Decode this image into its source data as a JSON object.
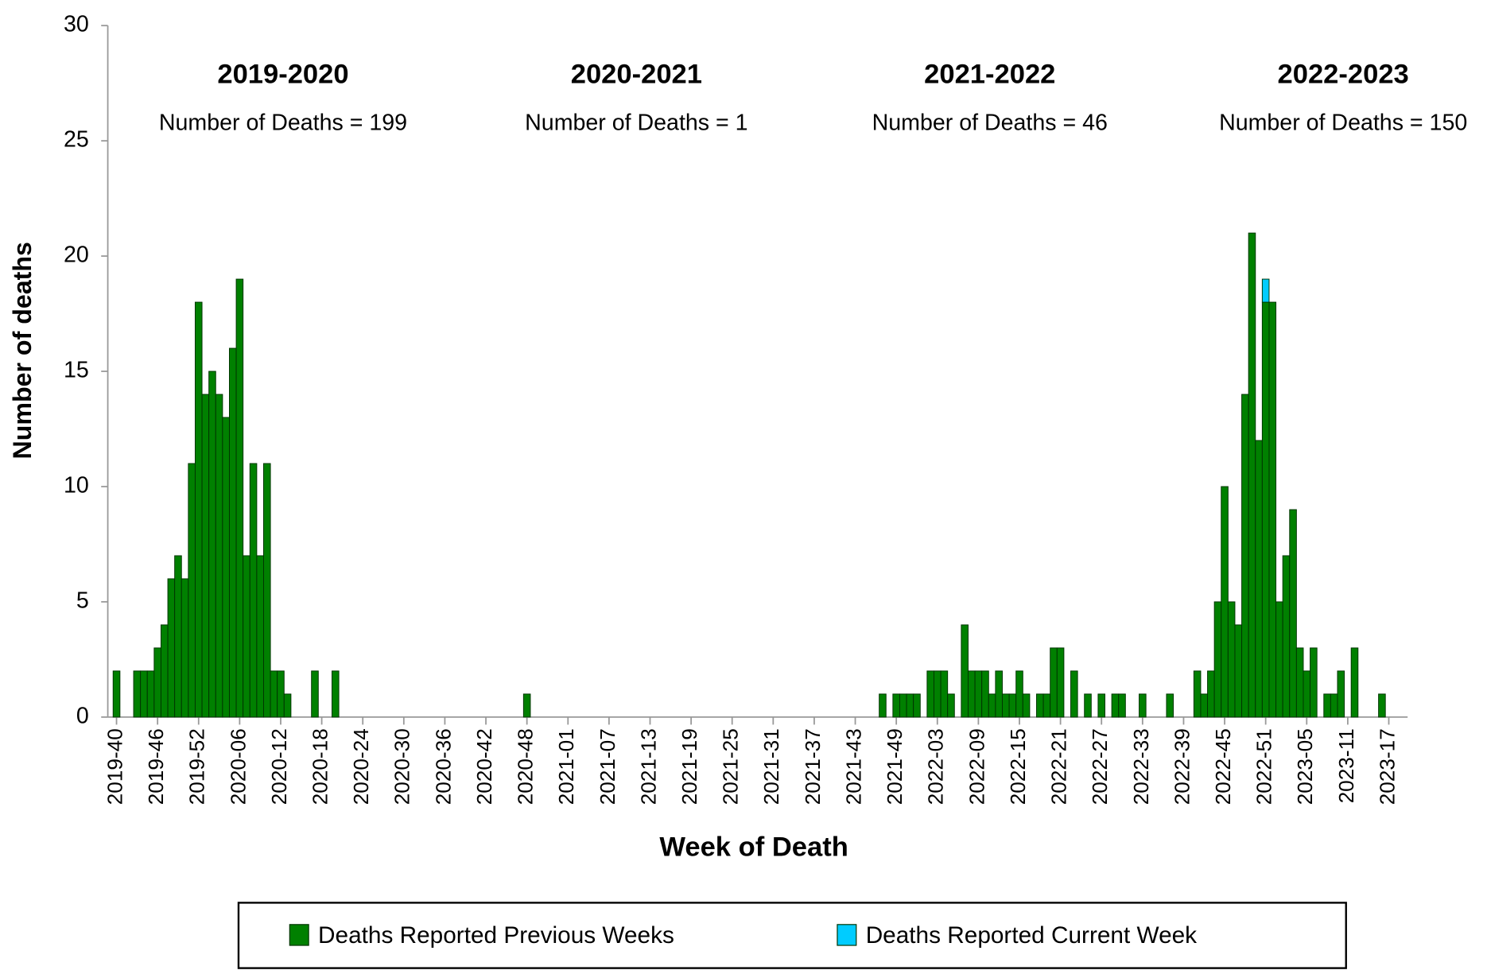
{
  "chart_data": {
    "type": "bar",
    "stacked": true,
    "y_label": "Number of deaths",
    "x_label": "Week of Death",
    "categories": [
      "2019-40",
      null,
      null,
      null,
      null,
      null,
      "2019-46",
      null,
      null,
      null,
      null,
      null,
      "2019-52",
      null,
      null,
      null,
      null,
      null,
      "2020-06",
      null,
      null,
      null,
      null,
      null,
      "2020-12",
      null,
      null,
      null,
      null,
      null,
      "2020-18",
      null,
      null,
      null,
      null,
      null,
      "2020-24",
      null,
      null,
      null,
      null,
      null,
      "2020-30",
      null,
      null,
      null,
      null,
      null,
      "2020-36",
      null,
      null,
      null,
      null,
      null,
      "2020-42",
      null,
      null,
      null,
      null,
      null,
      "2020-48",
      null,
      null,
      null,
      null,
      null,
      "2021-01",
      null,
      null,
      null,
      null,
      null,
      "2021-07",
      null,
      null,
      null,
      null,
      null,
      "2021-13",
      null,
      null,
      null,
      null,
      null,
      "2021-19",
      null,
      null,
      null,
      null,
      null,
      "2021-25",
      null,
      null,
      null,
      null,
      null,
      "2021-31",
      null,
      null,
      null,
      null,
      null,
      "2021-37",
      null,
      null,
      null,
      null,
      null,
      "2021-43",
      null,
      null,
      null,
      null,
      null,
      "2021-49",
      null,
      null,
      null,
      null,
      null,
      "2022-03",
      null,
      null,
      null,
      null,
      null,
      "2022-09",
      null,
      null,
      null,
      null,
      null,
      "2022-15",
      null,
      null,
      null,
      null,
      null,
      "2022-21",
      null,
      null,
      null,
      null,
      null,
      "2022-27",
      null,
      null,
      null,
      null,
      null,
      "2022-33",
      null,
      null,
      null,
      null,
      null,
      "2022-39",
      null,
      null,
      null,
      null,
      null,
      "2022-45",
      null,
      null,
      null,
      null,
      null,
      "2022-51",
      null,
      null,
      null,
      null,
      null,
      "2023-05",
      null,
      null,
      null,
      null,
      null,
      "2023-11",
      null,
      null,
      null,
      null,
      null,
      "2023-17"
    ],
    "series": [
      {
        "name": "Deaths Reported Previous Weeks",
        "color": "#008000",
        "values": [
          2,
          0,
          0,
          2,
          2,
          2,
          3,
          4,
          6,
          7,
          6,
          11,
          18,
          14,
          15,
          14,
          13,
          16,
          19,
          7,
          11,
          7,
          11,
          2,
          2,
          1,
          0,
          0,
          0,
          2,
          0,
          0,
          2,
          0,
          0,
          0,
          0,
          0,
          0,
          0,
          0,
          0,
          0,
          0,
          0,
          0,
          0,
          0,
          0,
          0,
          0,
          0,
          0,
          0,
          0,
          0,
          0,
          0,
          0,
          0,
          1,
          0,
          0,
          0,
          0,
          0,
          0,
          0,
          0,
          0,
          0,
          0,
          0,
          0,
          0,
          0,
          0,
          0,
          0,
          0,
          0,
          0,
          0,
          0,
          0,
          0,
          0,
          0,
          0,
          0,
          0,
          0,
          0,
          0,
          0,
          0,
          0,
          0,
          0,
          0,
          0,
          0,
          0,
          0,
          0,
          0,
          0,
          0,
          0,
          0,
          0,
          0,
          1,
          0,
          1,
          1,
          1,
          1,
          0,
          2,
          2,
          2,
          1,
          0,
          4,
          2,
          2,
          2,
          1,
          2,
          1,
          1,
          2,
          1,
          0,
          1,
          1,
          3,
          3,
          0,
          2,
          0,
          1,
          0,
          1,
          0,
          1,
          1,
          0,
          0,
          1,
          0,
          0,
          0,
          1,
          0,
          0,
          0,
          2,
          1,
          2,
          5,
          10,
          5,
          4,
          14,
          21,
          12,
          18,
          18,
          5,
          7,
          9,
          3,
          2,
          3,
          0,
          1,
          1,
          2,
          0,
          3,
          0,
          0,
          0,
          1,
          0
        ]
      },
      {
        "name": "Deaths Reported Current Week",
        "color": "#00ccff",
        "values": [
          0,
          0,
          0,
          0,
          0,
          0,
          0,
          0,
          0,
          0,
          0,
          0,
          0,
          0,
          0,
          0,
          0,
          0,
          0,
          0,
          0,
          0,
          0,
          0,
          0,
          0,
          0,
          0,
          0,
          0,
          0,
          0,
          0,
          0,
          0,
          0,
          0,
          0,
          0,
          0,
          0,
          0,
          0,
          0,
          0,
          0,
          0,
          0,
          0,
          0,
          0,
          0,
          0,
          0,
          0,
          0,
          0,
          0,
          0,
          0,
          0,
          0,
          0,
          0,
          0,
          0,
          0,
          0,
          0,
          0,
          0,
          0,
          0,
          0,
          0,
          0,
          0,
          0,
          0,
          0,
          0,
          0,
          0,
          0,
          0,
          0,
          0,
          0,
          0,
          0,
          0,
          0,
          0,
          0,
          0,
          0,
          0,
          0,
          0,
          0,
          0,
          0,
          0,
          0,
          0,
          0,
          0,
          0,
          0,
          0,
          0,
          0,
          0,
          0,
          0,
          0,
          0,
          0,
          0,
          0,
          0,
          0,
          0,
          0,
          0,
          0,
          0,
          0,
          0,
          0,
          0,
          0,
          0,
          0,
          0,
          0,
          0,
          0,
          0,
          0,
          0,
          0,
          0,
          0,
          0,
          0,
          0,
          0,
          0,
          0,
          0,
          0,
          0,
          0,
          0,
          0,
          0,
          0,
          0,
          0,
          0,
          0,
          0,
          0,
          0,
          0,
          0,
          0,
          1,
          0,
          0,
          0,
          0,
          0,
          0,
          0,
          0,
          0,
          0,
          0,
          0,
          0,
          0,
          0,
          0,
          0,
          0
        ]
      }
    ],
    "ylim": [
      0,
      30
    ],
    "yticks": [
      0,
      5,
      10,
      15,
      20,
      25,
      30
    ],
    "grid": false,
    "legend": "bottom",
    "annotations": [
      {
        "title": "2019-2020",
        "text": "Number of Deaths = 199"
      },
      {
        "title": "2020-2021",
        "text": "Number of Deaths = 1"
      },
      {
        "title": "2021-2022",
        "text": "Number of Deaths = 46"
      },
      {
        "title": "2022-2023",
        "text": "Number of Deaths = 150"
      }
    ]
  }
}
